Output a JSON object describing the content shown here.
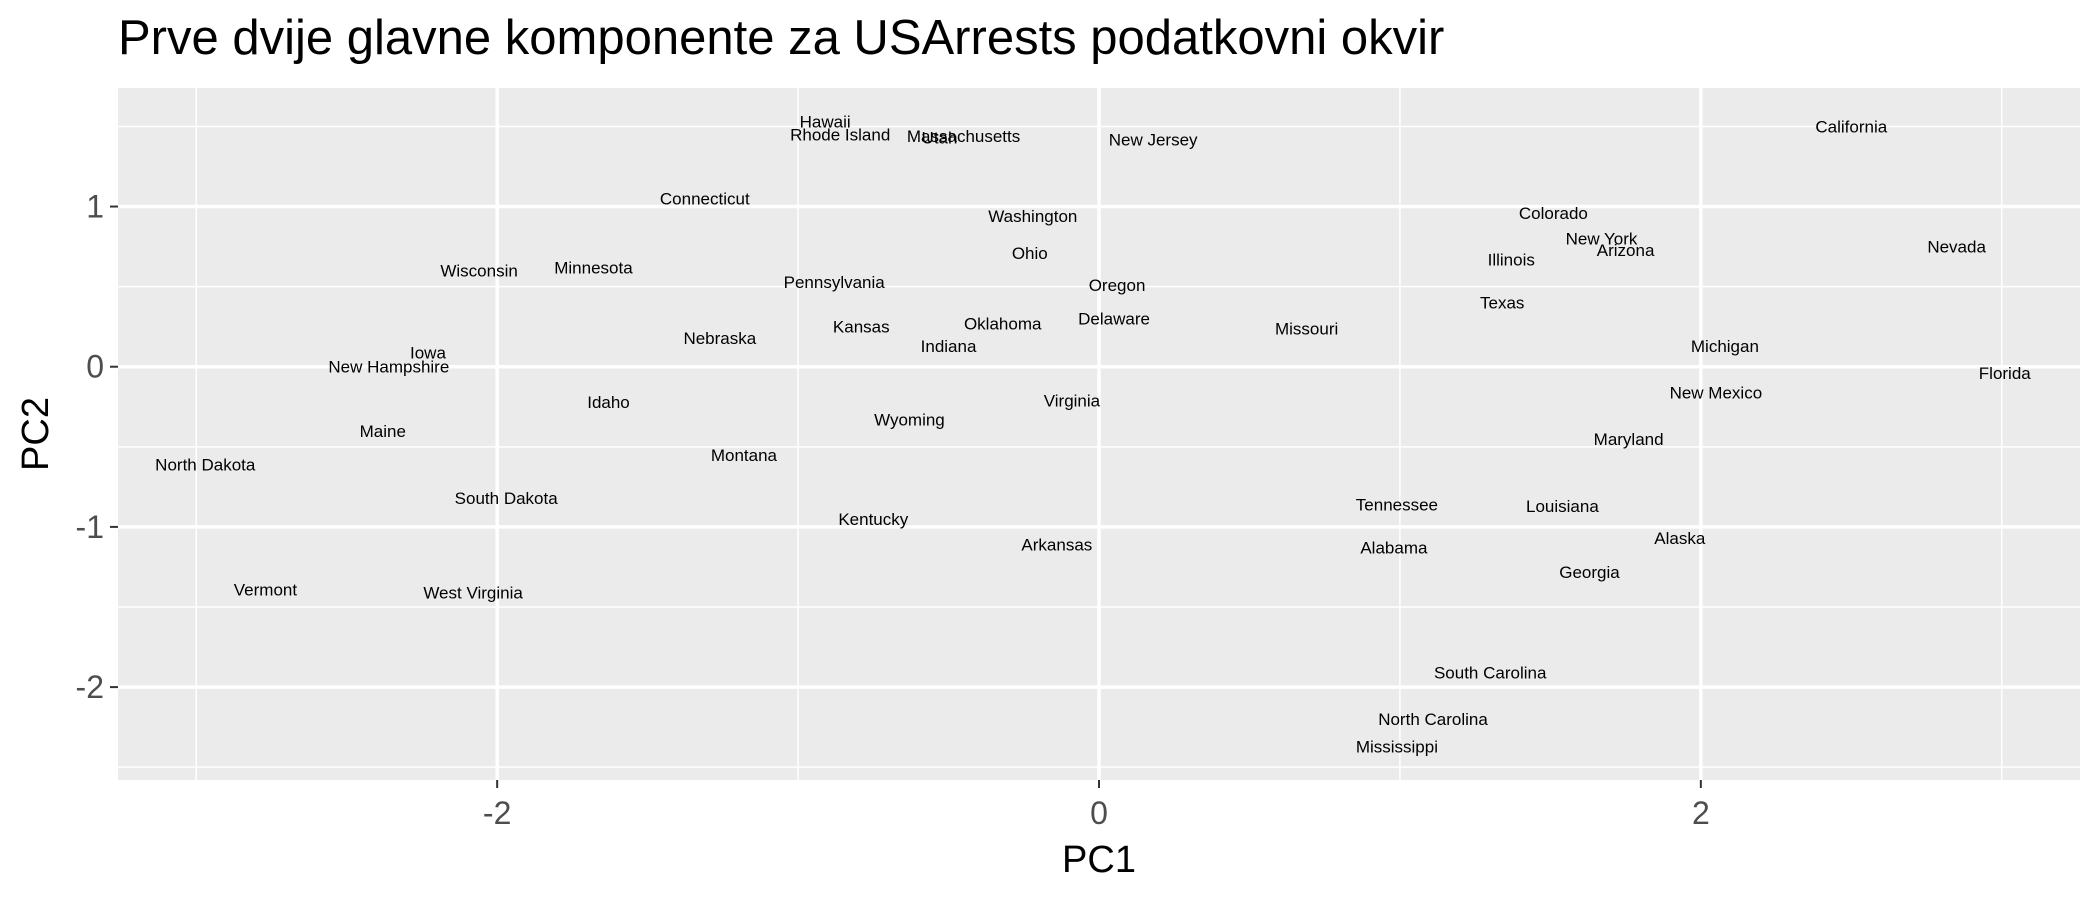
{
  "chart_data": {
    "type": "scatter",
    "title": "Prve dvije glavne komponente za USArrests podatkovni okvir",
    "xlabel": "PC1",
    "ylabel": "PC2",
    "xlim": [
      -3.26,
      3.26
    ],
    "ylim": [
      -2.58,
      1.74
    ],
    "x_ticks": [
      -2,
      0,
      2
    ],
    "x_tick_labels": [
      "-2",
      "0",
      "2"
    ],
    "y_ticks": [
      -2,
      -1,
      0,
      1
    ],
    "y_tick_labels": [
      "-2",
      "-1",
      "0",
      "1"
    ],
    "grid": true,
    "colors": {
      "panel": "#ebebeb",
      "grid": "#ffffff",
      "ticks": "#333333"
    },
    "points": [
      {
        "label": "Hawaii",
        "x": -0.91,
        "y": 1.53
      },
      {
        "label": "Rhode Island",
        "x": -0.86,
        "y": 1.45
      },
      {
        "label": "Massachusetts",
        "x": -0.45,
        "y": 1.44
      },
      {
        "label": "Utah",
        "x": -0.53,
        "y": 1.43
      },
      {
        "label": "New Jersey",
        "x": 0.18,
        "y": 1.42
      },
      {
        "label": "California",
        "x": 2.5,
        "y": 1.5
      },
      {
        "label": "Connecticut",
        "x": -1.31,
        "y": 1.05
      },
      {
        "label": "Washington",
        "x": -0.22,
        "y": 0.94
      },
      {
        "label": "Colorado",
        "x": 1.51,
        "y": 0.96
      },
      {
        "label": "New York",
        "x": 1.67,
        "y": 0.8
      },
      {
        "label": "Arizona",
        "x": 1.75,
        "y": 0.73
      },
      {
        "label": "Nevada",
        "x": 2.85,
        "y": 0.75
      },
      {
        "label": "Ohio",
        "x": -0.23,
        "y": 0.71
      },
      {
        "label": "Illinois",
        "x": 1.37,
        "y": 0.67
      },
      {
        "label": "Wisconsin",
        "x": -2.06,
        "y": 0.6
      },
      {
        "label": "Minnesota",
        "x": -1.68,
        "y": 0.62
      },
      {
        "label": "Pennsylvania",
        "x": -0.88,
        "y": 0.53
      },
      {
        "label": "Oregon",
        "x": 0.06,
        "y": 0.51
      },
      {
        "label": "Texas",
        "x": 1.34,
        "y": 0.4
      },
      {
        "label": "Delaware",
        "x": 0.05,
        "y": 0.3
      },
      {
        "label": "Oklahoma",
        "x": -0.32,
        "y": 0.27
      },
      {
        "label": "Kansas",
        "x": -0.79,
        "y": 0.25
      },
      {
        "label": "Missouri",
        "x": 0.69,
        "y": 0.24
      },
      {
        "label": "Nebraska",
        "x": -1.26,
        "y": 0.18
      },
      {
        "label": "Indiana",
        "x": -0.5,
        "y": 0.13
      },
      {
        "label": "Michigan",
        "x": 2.08,
        "y": 0.13
      },
      {
        "label": "Iowa",
        "x": -2.23,
        "y": 0.09
      },
      {
        "label": "New Hampshire",
        "x": -2.36,
        "y": 0.0
      },
      {
        "label": "Florida",
        "x": 3.01,
        "y": -0.04
      },
      {
        "label": "New Mexico",
        "x": 2.05,
        "y": -0.16
      },
      {
        "label": "Idaho",
        "x": -1.63,
        "y": -0.22
      },
      {
        "label": "Virginia",
        "x": -0.09,
        "y": -0.21
      },
      {
        "label": "Wyoming",
        "x": -0.63,
        "y": -0.33
      },
      {
        "label": "Maine",
        "x": -2.38,
        "y": -0.4
      },
      {
        "label": "Maryland",
        "x": 1.76,
        "y": -0.45
      },
      {
        "label": "Montana",
        "x": -1.18,
        "y": -0.55
      },
      {
        "label": "North Dakota",
        "x": -2.97,
        "y": -0.61
      },
      {
        "label": "South Dakota",
        "x": -1.97,
        "y": -0.82
      },
      {
        "label": "Tennessee",
        "x": 0.99,
        "y": -0.86
      },
      {
        "label": "Louisiana",
        "x": 1.54,
        "y": -0.87
      },
      {
        "label": "Kentucky",
        "x": -0.75,
        "y": -0.95
      },
      {
        "label": "Alaska",
        "x": 1.93,
        "y": -1.07
      },
      {
        "label": "Arkansas",
        "x": -0.14,
        "y": -1.11
      },
      {
        "label": "Alabama",
        "x": 0.98,
        "y": -1.13
      },
      {
        "label": "Georgia",
        "x": 1.63,
        "y": -1.28
      },
      {
        "label": "Vermont",
        "x": -2.77,
        "y": -1.39
      },
      {
        "label": "West Virginia",
        "x": -2.08,
        "y": -1.41
      },
      {
        "label": "South Carolina",
        "x": 1.3,
        "y": -1.91
      },
      {
        "label": "North Carolina",
        "x": 1.11,
        "y": -2.2
      },
      {
        "label": "Mississippi",
        "x": 0.99,
        "y": -2.37
      }
    ]
  }
}
